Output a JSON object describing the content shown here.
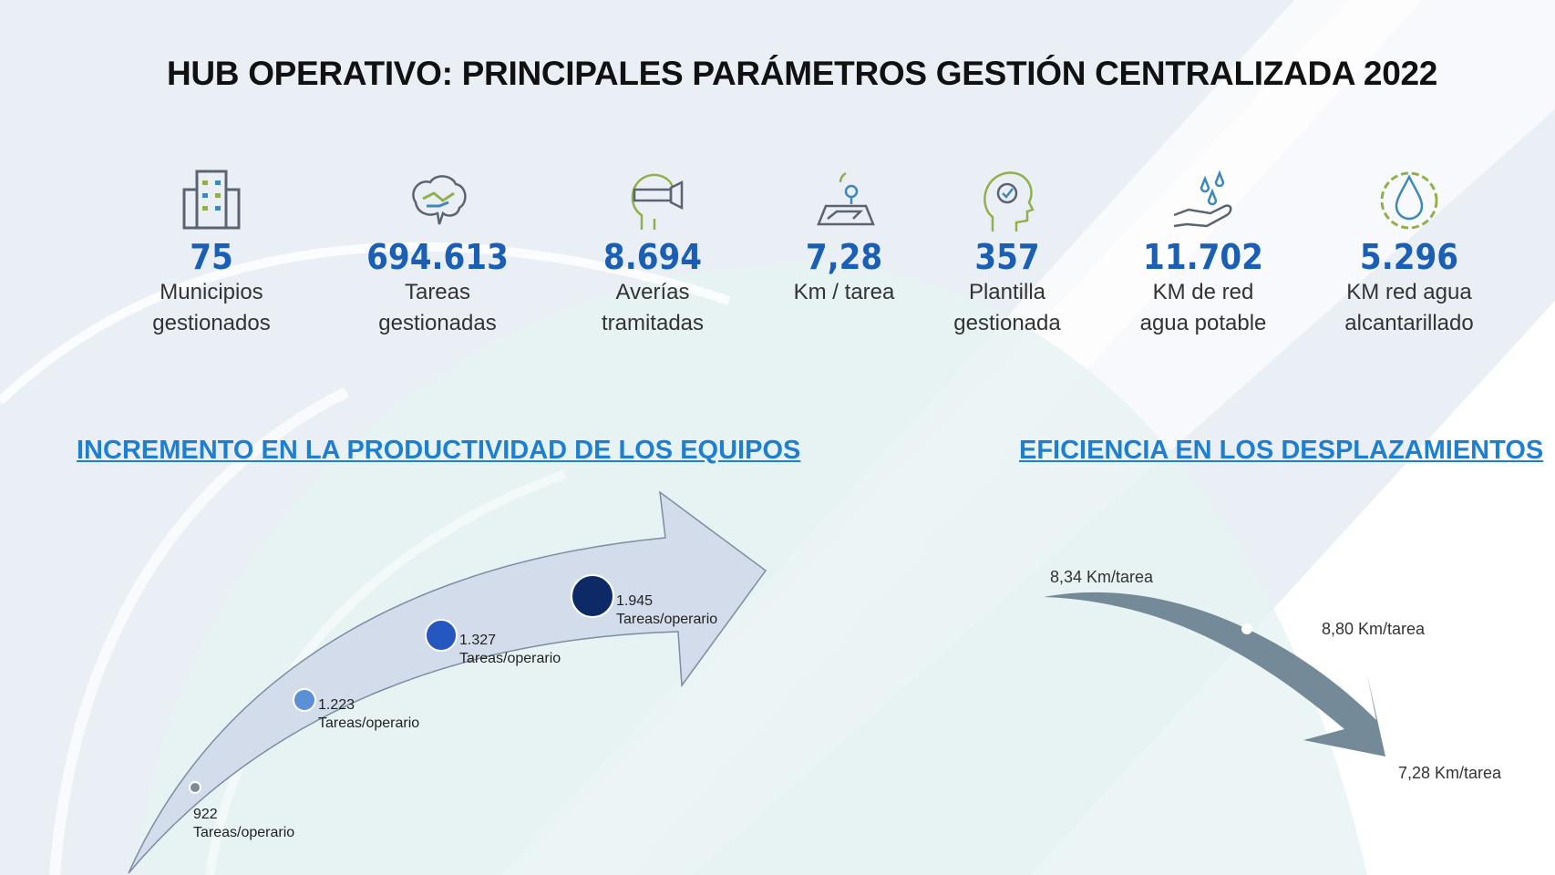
{
  "title": "HUB OPERATIVO: PRINCIPALES PARÁMETROS GESTIÓN CENTRALIZADA 2022",
  "stats": [
    {
      "icon": "building-icon",
      "value": "75",
      "line1": "Municipios",
      "line2": "gestionados"
    },
    {
      "icon": "brain-icon",
      "value": "694.613",
      "line1": "Tareas",
      "line2": "gestionadas"
    },
    {
      "icon": "vr-headset-icon",
      "value": "8.694",
      "line1": "Averías",
      "line2": "tramitadas"
    },
    {
      "icon": "map-pin-route-icon",
      "value": "7,28",
      "line1": "Km / tarea",
      "line2": ""
    },
    {
      "icon": "head-check-icon",
      "value": "357",
      "line1": "Plantilla",
      "line2": "gestionada"
    },
    {
      "icon": "hand-water-icon",
      "value": "11.702",
      "line1": "KM de red",
      "line2": "agua potable"
    },
    {
      "icon": "water-drop-gear-icon",
      "value": "5.296",
      "line1": "KM red agua",
      "line2": "alcantarillado"
    }
  ],
  "productividad": {
    "heading": "INCREMENTO EN LA PRODUCTIVIDAD DE LOS EQUIPOS",
    "points": [
      {
        "value": "922",
        "unit": "Tareas/operario",
        "color": "#7a8c96"
      },
      {
        "value": "1.223",
        "unit": "Tareas/operario",
        "color": "#5b8fd6"
      },
      {
        "value": "1.327",
        "unit": "Tareas/operario",
        "color": "#2457c0"
      },
      {
        "value": "1.945",
        "unit": "Tareas/operario",
        "color": "#0d2a66"
      }
    ]
  },
  "eficiencia": {
    "heading": "EFICIENCIA EN LOS DESPLAZAMIENTOS",
    "start": "8,34 Km/tarea",
    "mid": "8,80 Km/tarea",
    "end": "7,28 Km/tarea"
  }
}
